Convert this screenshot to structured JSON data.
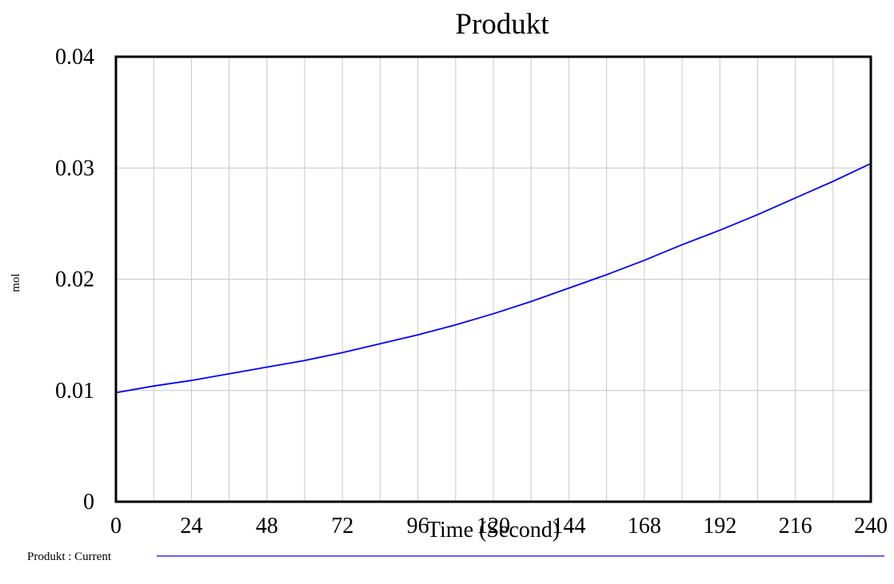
{
  "chart_data": {
    "type": "line",
    "title": "Produkt",
    "xlabel": "Time (Second)",
    "ylabel": "mol",
    "xlim": [
      0,
      240
    ],
    "ylim": [
      0,
      0.04
    ],
    "x_ticks": [
      0,
      24,
      48,
      72,
      96,
      120,
      144,
      168,
      192,
      216,
      240
    ],
    "x_tick_labels": [
      "0",
      "24",
      "48",
      "72",
      "96",
      "120",
      "144",
      "168",
      "192",
      "216",
      "240"
    ],
    "x_minor_grid_step": 12,
    "y_ticks": [
      0,
      0.01,
      0.02,
      0.03,
      0.04
    ],
    "y_tick_labels": [
      "0",
      "0.01",
      "0.02",
      "0.03",
      "0.04"
    ],
    "grid": true,
    "legend_position": "bottom",
    "series": [
      {
        "name": "Produkt : Current",
        "color": "#0000ff",
        "x": [
          0,
          12,
          24,
          36,
          48,
          60,
          72,
          84,
          96,
          108,
          120,
          132,
          144,
          156,
          168,
          180,
          192,
          204,
          216,
          228,
          240
        ],
        "values": [
          0.0098,
          0.0104,
          0.0109,
          0.0115,
          0.0121,
          0.0127,
          0.0134,
          0.0142,
          0.015,
          0.0159,
          0.0169,
          0.018,
          0.0192,
          0.0204,
          0.0217,
          0.0231,
          0.0244,
          0.0258,
          0.0273,
          0.0288,
          0.0304
        ]
      }
    ]
  }
}
